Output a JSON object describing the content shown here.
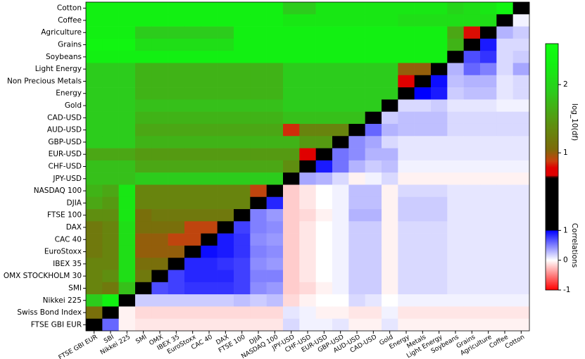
{
  "chart_data": {
    "type": "heatmap",
    "rows": [
      "Cotton",
      "Coffee",
      "Agriculture",
      "Grains",
      "Soybeans",
      "Light Energy",
      "Non Precious Metals",
      "Energy",
      "Gold",
      "CAD-USD",
      "AUD-USD",
      "GBP-USD",
      "EUR-USD",
      "CHF-USD",
      "JPY-USD",
      "NASDAQ 100",
      "DJIA",
      "FTSE 100",
      "DAX",
      "CAC 40",
      "EuroStoxx",
      "IBEX 35",
      "OMX STOCKHOLM 30",
      "SMI",
      "Nikkei 225",
      "Swiss Bond Index",
      "FTSE GBI EUR"
    ],
    "columns": [
      "FTSE GBI EUR",
      "SBI",
      "Nikkei 225",
      "SMI",
      "OMX",
      "IBEX 35",
      "EuroStoxx",
      "CAC 40",
      "DAX",
      "FTSE 100",
      "DJIA",
      "NASDAQ 100",
      "JPY-USD",
      "CHF-USD",
      "EUR-USD",
      "GBP-USD",
      "AUD-USD",
      "CAD-USD",
      "Gold",
      "Energy",
      "Metals",
      "Light Energy",
      "Soybeans",
      "Grains",
      "Agriculture",
      "Coffee",
      "Cotton"
    ],
    "values": [
      [
        2.3,
        2.3,
        2.3,
        2.3,
        2.3,
        2.3,
        2.3,
        2.3,
        2.3,
        2.3,
        2.3,
        2.3,
        1.9,
        1.9,
        2.2,
        2.2,
        2.2,
        2.2,
        2.2,
        2.2,
        2.2,
        2.2,
        2.0,
        2.1,
        2.2,
        2.4,
        null
      ],
      [
        2.3,
        2.3,
        2.3,
        2.3,
        2.3,
        2.3,
        2.3,
        2.3,
        2.3,
        2.3,
        2.3,
        2.3,
        2.2,
        2.2,
        2.2,
        2.2,
        2.2,
        2.2,
        2.2,
        2.1,
        2.1,
        2.1,
        2.1,
        2.1,
        2.1,
        null,
        0.05
      ],
      [
        2.3,
        2.3,
        2.3,
        1.9,
        1.9,
        1.9,
        1.9,
        1.9,
        1.9,
        2.3,
        2.3,
        2.3,
        2.3,
        2.3,
        2.3,
        2.3,
        2.3,
        2.3,
        2.3,
        2.3,
        2.3,
        2.3,
        1.6,
        0.8,
        null,
        0.3,
        0.2
      ],
      [
        2.4,
        2.4,
        2.4,
        2.1,
        2.1,
        2.1,
        2.1,
        2.1,
        2.1,
        2.3,
        2.3,
        2.3,
        2.3,
        2.3,
        2.3,
        2.3,
        2.3,
        2.3,
        2.3,
        2.3,
        2.3,
        2.3,
        1.7,
        null,
        0.9,
        0.15,
        0.15
      ],
      [
        2.3,
        2.3,
        2.3,
        2.3,
        2.3,
        2.3,
        2.3,
        2.3,
        2.3,
        2.3,
        2.3,
        2.3,
        2.3,
        2.3,
        2.3,
        2.3,
        2.3,
        2.3,
        2.3,
        2.3,
        2.3,
        2.3,
        null,
        0.7,
        0.8,
        0.15,
        0.2
      ],
      [
        1.9,
        1.9,
        1.9,
        1.7,
        1.7,
        1.7,
        1.7,
        1.7,
        1.7,
        1.7,
        1.7,
        1.7,
        1.9,
        1.9,
        1.9,
        1.9,
        1.9,
        1.9,
        1.9,
        1.0,
        1.0,
        null,
        0.3,
        0.6,
        0.5,
        0.15,
        0.35
      ],
      [
        1.9,
        1.9,
        1.9,
        1.7,
        1.7,
        1.7,
        1.7,
        1.7,
        1.7,
        1.7,
        1.7,
        1.7,
        1.9,
        1.9,
        1.9,
        1.9,
        1.9,
        1.9,
        1.9,
        0.75,
        null,
        0.95,
        0.25,
        0.3,
        0.3,
        0.1,
        0.15
      ],
      [
        1.9,
        1.9,
        1.9,
        1.7,
        1.7,
        1.7,
        1.7,
        1.7,
        1.7,
        1.7,
        1.7,
        1.7,
        1.9,
        1.9,
        1.9,
        1.9,
        1.9,
        1.9,
        1.9,
        null,
        1.0,
        0.9,
        0.2,
        0.25,
        0.25,
        0.1,
        0.15
      ],
      [
        1.9,
        1.9,
        1.9,
        1.8,
        1.8,
        1.8,
        1.8,
        1.8,
        1.8,
        1.8,
        1.8,
        1.8,
        1.9,
        1.9,
        1.9,
        1.9,
        1.9,
        1.9,
        null,
        0.15,
        0.15,
        0.2,
        0.1,
        0.1,
        0.1,
        0.05,
        0.05
      ],
      [
        1.9,
        1.9,
        1.9,
        1.7,
        1.7,
        1.7,
        1.7,
        1.7,
        1.7,
        1.7,
        1.7,
        1.7,
        1.8,
        1.8,
        1.8,
        1.8,
        1.8,
        null,
        0.2,
        0.25,
        0.25,
        0.25,
        0.15,
        0.15,
        0.15,
        0.15,
        0.15
      ],
      [
        1.9,
        1.9,
        1.9,
        1.6,
        1.6,
        1.6,
        1.6,
        1.6,
        1.6,
        1.6,
        1.6,
        1.6,
        0.85,
        1.3,
        1.3,
        1.3,
        null,
        0.6,
        0.3,
        0.25,
        0.25,
        0.25,
        0.15,
        0.15,
        0.15,
        0.15,
        0.15
      ],
      [
        1.9,
        1.9,
        1.9,
        1.7,
        1.7,
        1.7,
        1.7,
        1.7,
        1.7,
        1.7,
        1.7,
        1.7,
        1.7,
        1.5,
        1.5,
        null,
        0.45,
        0.35,
        0.15,
        0.1,
        0.1,
        0.1,
        0.1,
        0.1,
        0.1,
        0.1,
        0.1
      ],
      [
        1.6,
        1.6,
        1.6,
        1.5,
        1.5,
        1.5,
        1.5,
        1.5,
        1.5,
        1.5,
        1.5,
        1.5,
        1.5,
        0.7,
        null,
        0.55,
        0.45,
        0.3,
        0.3,
        0.1,
        0.1,
        0.1,
        0.1,
        0.1,
        0.1,
        0.1,
        0.1
      ],
      [
        1.8,
        1.8,
        1.8,
        1.6,
        1.6,
        1.6,
        1.6,
        1.6,
        1.6,
        1.6,
        1.6,
        1.6,
        1.4,
        null,
        0.9,
        0.55,
        0.3,
        0.2,
        0.25,
        0.05,
        0.05,
        0.05,
        0.05,
        0.05,
        0.05,
        0.05,
        0.05
      ],
      [
        1.8,
        1.8,
        1.8,
        1.9,
        1.9,
        1.9,
        1.9,
        1.9,
        1.9,
        1.9,
        1.9,
        1.9,
        null,
        0.35,
        0.3,
        0.15,
        -0.05,
        0.05,
        0.15,
        -0.05,
        -0.05,
        -0.05,
        -0.05,
        -0.05,
        -0.05,
        -0.05,
        -0.05
      ],
      [
        1.7,
        1.6,
        2.2,
        1.3,
        1.3,
        1.3,
        1.3,
        1.3,
        1.3,
        1.3,
        0.9,
        null,
        -0.2,
        -0.1,
        0,
        0.05,
        0.25,
        0.25,
        -0.05,
        0.15,
        0.15,
        0.15,
        0.1,
        0.1,
        0.1,
        0.1,
        0.1
      ],
      [
        1.6,
        1.5,
        2.2,
        1.3,
        1.3,
        1.3,
        1.3,
        1.3,
        1.3,
        1.3,
        null,
        0.85,
        -0.2,
        -0.1,
        0,
        0.05,
        0.25,
        0.25,
        -0.05,
        0.2,
        0.2,
        0.2,
        0.1,
        0.1,
        0.1,
        0.1,
        0.1
      ],
      [
        1.4,
        1.4,
        2.2,
        1.1,
        1.2,
        1.2,
        1.2,
        1.2,
        1.2,
        null,
        0.5,
        0.4,
        -0.2,
        -0.15,
        -0.05,
        0.05,
        0.3,
        0.3,
        -0.05,
        0.2,
        0.2,
        0.2,
        0.1,
        0.1,
        0.1,
        0.1,
        0.1
      ],
      [
        1.2,
        1.3,
        2.1,
        1.1,
        1.1,
        1.1,
        0.9,
        0.9,
        null,
        0.75,
        0.5,
        0.45,
        -0.2,
        -0.1,
        0,
        0.05,
        0.2,
        0.2,
        -0.05,
        0.15,
        0.15,
        0.15,
        0.1,
        0.1,
        0.1,
        0.1,
        0.1
      ],
      [
        1.2,
        1.3,
        2.1,
        1.0,
        1.0,
        0.9,
        0.9,
        null,
        0.9,
        0.8,
        0.45,
        0.4,
        -0.2,
        -0.1,
        0,
        0.05,
        0.2,
        0.2,
        -0.05,
        0.15,
        0.15,
        0.15,
        0.1,
        0.1,
        0.1,
        0.1,
        0.1
      ],
      [
        1.2,
        1.3,
        2.1,
        1.0,
        1.0,
        1.0,
        null,
        0.95,
        0.9,
        0.8,
        0.5,
        0.45,
        -0.2,
        -0.1,
        0,
        0.05,
        0.2,
        0.2,
        -0.05,
        0.15,
        0.15,
        0.15,
        0.1,
        0.1,
        0.1,
        0.1,
        0.1
      ],
      [
        1.3,
        1.3,
        2.1,
        1.1,
        1.1,
        null,
        0.85,
        0.85,
        0.8,
        0.75,
        0.45,
        0.4,
        -0.2,
        -0.1,
        0,
        0.05,
        0.2,
        0.2,
        -0.05,
        0.15,
        0.15,
        0.15,
        0.1,
        0.1,
        0.1,
        0.1,
        0.1
      ],
      [
        1.3,
        1.4,
        2.1,
        1.2,
        null,
        0.75,
        0.85,
        0.85,
        0.85,
        0.75,
        0.5,
        0.5,
        -0.2,
        -0.1,
        0,
        0.05,
        0.2,
        0.2,
        -0.05,
        0.15,
        0.15,
        0.15,
        0.1,
        0.1,
        0.1,
        0.1,
        0.1
      ],
      [
        1.3,
        1.2,
        1.8,
        null,
        0.7,
        0.75,
        0.8,
        0.8,
        0.8,
        0.75,
        0.45,
        0.4,
        -0.2,
        -0.15,
        -0.05,
        0.05,
        0.2,
        0.2,
        -0.05,
        0.15,
        0.15,
        0.15,
        0.1,
        0.1,
        0.1,
        0.1,
        0.1
      ],
      [
        1.9,
        2.3,
        null,
        0.2,
        0.2,
        0.2,
        0.2,
        0.2,
        0.2,
        0.25,
        0.2,
        0.25,
        -0.15,
        -0.05,
        0,
        0,
        0.15,
        0.1,
        0,
        0.05,
        0.05,
        0.05,
        0.05,
        0.05,
        0.05,
        0.05,
        0.05
      ],
      [
        1.1,
        null,
        -0.05,
        -0.15,
        -0.15,
        -0.15,
        -0.15,
        -0.15,
        -0.15,
        -0.15,
        -0.15,
        -0.15,
        0.1,
        0.05,
        -0.05,
        -0.05,
        -0.1,
        -0.1,
        0.05,
        -0.1,
        -0.1,
        -0.1,
        -0.1,
        -0.1,
        -0.1,
        -0.1,
        -0.1
      ],
      [
        null,
        0.6,
        -0.05,
        -0.1,
        -0.1,
        -0.1,
        -0.1,
        -0.1,
        -0.1,
        -0.1,
        -0.1,
        -0.1,
        0.15,
        0.05,
        0.05,
        0.1,
        -0.05,
        -0.05,
        0.1,
        -0.05,
        -0.05,
        -0.05,
        -0.05,
        -0.05,
        -0.05,
        -0.05,
        -0.05
      ]
    ],
    "colorbars": [
      {
        "label": "log_10(df)",
        "lim": [
          0.3,
          2.6
        ],
        "ticks": [
          1,
          2
        ]
      },
      {
        "label": "Correlations",
        "lim": [
          -1,
          2
        ],
        "ticks": [
          -1,
          0,
          1
        ]
      }
    ]
  }
}
